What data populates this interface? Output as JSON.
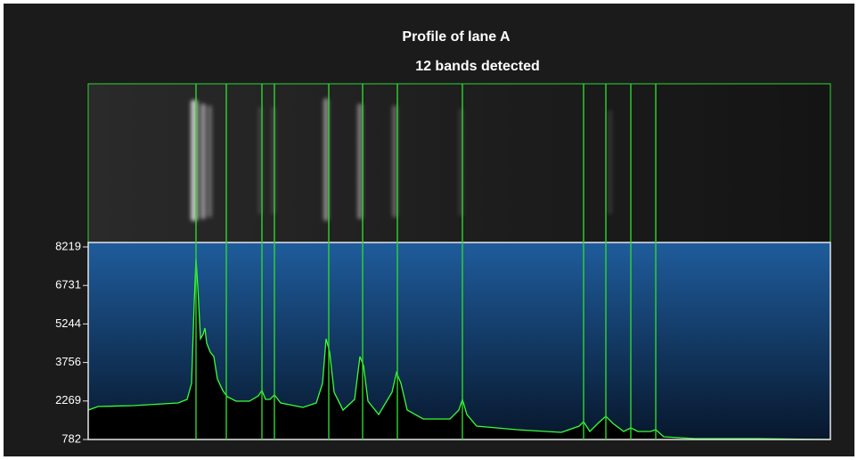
{
  "chart_data": {
    "type": "line",
    "title": "Profile of lane A",
    "subtitle": "12 bands detected",
    "x": [
      0,
      11,
      51,
      101,
      111,
      116,
      119,
      121,
      123,
      126,
      129,
      131,
      133,
      137,
      141,
      145,
      151,
      156,
      166,
      181,
      191,
      195,
      199,
      204,
      209,
      216,
      241,
      256,
      263,
      267,
      271,
      276,
      286,
      299,
      305,
      309,
      314,
      326,
      341,
      346,
      351,
      358,
      376,
      406,
      416,
      420,
      425,
      436,
      481,
      531,
      551,
      556,
      563,
      573,
      581,
      589,
      601,
      609,
      617,
      631,
      637,
      646,
      681,
      751,
      833
    ],
    "values": [
      1918,
      2056,
      2090,
      2194,
      2331,
      2951,
      6050,
      7771,
      6670,
      4672,
      4845,
      5086,
      4500,
      4156,
      3984,
      3123,
      2676,
      2435,
      2263,
      2263,
      2469,
      2676,
      2331,
      2331,
      2504,
      2194,
      2021,
      2194,
      2951,
      4672,
      4156,
      2607,
      1918,
      2331,
      3984,
      3640,
      2263,
      1746,
      2607,
      3364,
      2951,
      1918,
      1574,
      1574,
      1918,
      2331,
      1746,
      1298,
      1161,
      1057,
      1298,
      1470,
      1092,
      1436,
      1677,
      1402,
      1092,
      1230,
      1092,
      1092,
      1161,
      885,
      816,
      816,
      782
    ],
    "xlim": [
      0,
      833
    ],
    "ylim": [
      782,
      8391
    ],
    "yticks": [
      782,
      2269,
      3756,
      5244,
      6731,
      8219
    ],
    "bands": [
      121,
      155,
      195,
      209,
      270,
      308,
      347,
      420,
      556,
      581,
      609,
      637
    ],
    "color": "#39ff39",
    "band_color": "#2fd62f",
    "fill_color": "#000000"
  }
}
